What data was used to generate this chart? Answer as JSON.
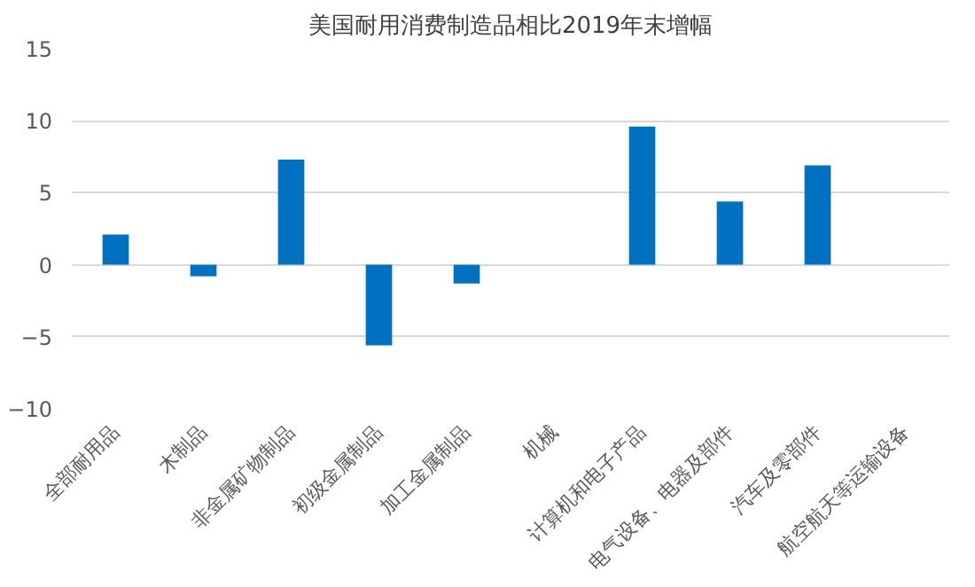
{
  "chart_data": {
    "type": "bar",
    "title": "美国耐用消费制造品相比2019年末增幅",
    "categories": [
      "全部耐用品",
      "木制品",
      "非金属矿物制品",
      "初级金属制品",
      "加工金属制品",
      "机械",
      "计算机和电子产品",
      "电气设备、电器及部件",
      "汽车及零部件",
      "航空航天等运输设备"
    ],
    "values": [
      2.1,
      -0.8,
      7.3,
      -5.6,
      -1.3,
      null,
      9.6,
      4.4,
      6.9,
      null
    ],
    "color": "#0070c0",
    "ylim": [
      -10,
      15
    ],
    "yticks": [
      -10,
      -5,
      0,
      5,
      10,
      15
    ],
    "grid": "y"
  }
}
